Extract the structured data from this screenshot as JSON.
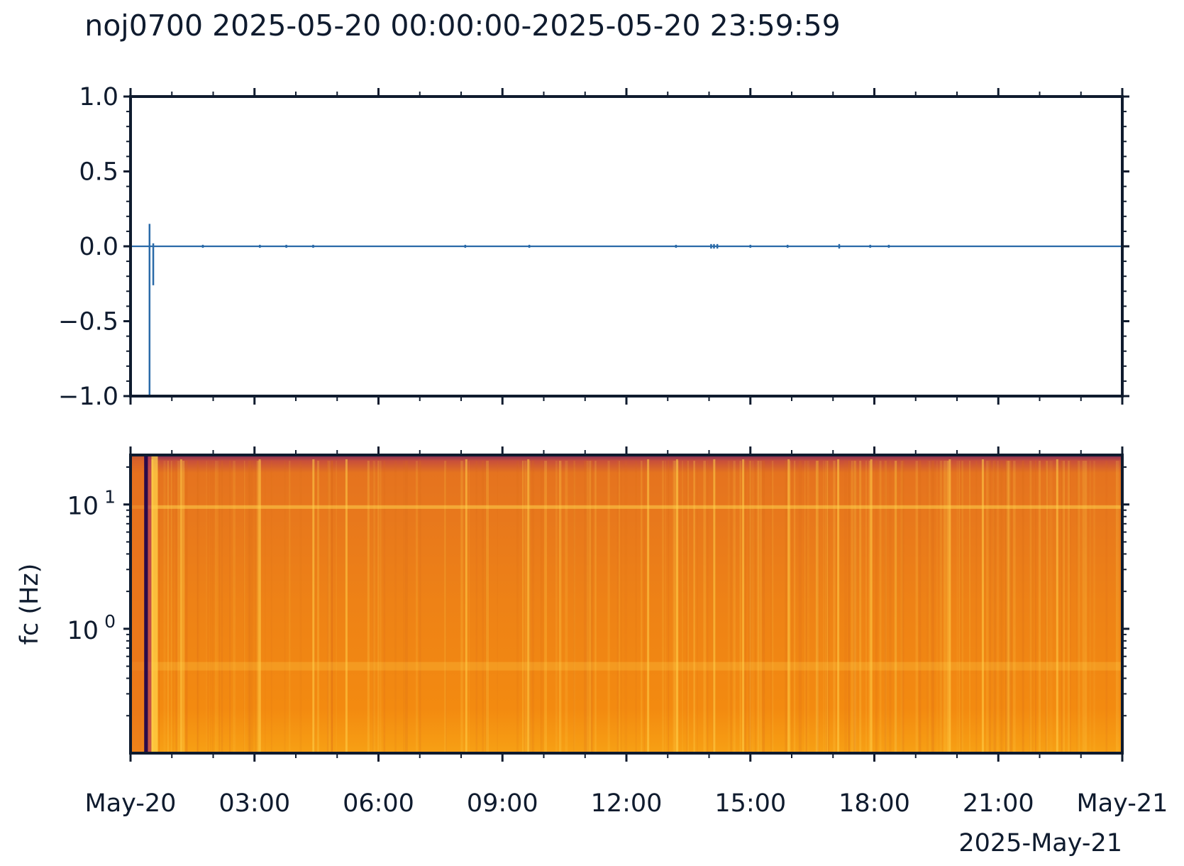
{
  "title": "noj0700 2025-05-20 00:00:00-2025-05-20 23:59:59",
  "colors": {
    "text": "#0f1b2e",
    "trace": "#2a6aa8",
    "spectrogram_base": "#f0860e",
    "spectrogram_dark": "#2a0a4a",
    "spectrogram_bright": "#ffd24a"
  },
  "chart_data": [
    {
      "type": "line",
      "name": "waveform",
      "ylim": [
        -1.0,
        1.0
      ],
      "yticks": [
        {
          "v": 1.0,
          "label": "1.0"
        },
        {
          "v": 0.5,
          "label": "0.5"
        },
        {
          "v": 0.0,
          "label": "0.0"
        },
        {
          "v": -0.5,
          "label": "−0.5"
        },
        {
          "v": -1.0,
          "label": "−1.0"
        }
      ],
      "xlim_hours": [
        0,
        24
      ],
      "baseline": 0.0,
      "spikes": [
        {
          "t": 0.46,
          "min": -1.0,
          "max": 0.15
        },
        {
          "t": 0.55,
          "min": -0.26,
          "max": 0.02
        },
        {
          "t": 1.75,
          "min": -0.01,
          "max": 0.01
        },
        {
          "t": 3.13,
          "min": -0.01,
          "max": 0.01
        },
        {
          "t": 3.77,
          "min": -0.01,
          "max": 0.01
        },
        {
          "t": 4.42,
          "min": -0.01,
          "max": 0.01
        },
        {
          "t": 8.1,
          "min": -0.01,
          "max": 0.01
        },
        {
          "t": 9.65,
          "min": -0.01,
          "max": 0.01
        },
        {
          "t": 13.2,
          "min": -0.01,
          "max": 0.01
        },
        {
          "t": 14.05,
          "min": -0.015,
          "max": 0.015
        },
        {
          "t": 14.12,
          "min": -0.015,
          "max": 0.015
        },
        {
          "t": 14.2,
          "min": -0.015,
          "max": 0.015
        },
        {
          "t": 15.0,
          "min": -0.01,
          "max": 0.01
        },
        {
          "t": 15.9,
          "min": -0.01,
          "max": 0.01
        },
        {
          "t": 17.15,
          "min": -0.015,
          "max": 0.015
        },
        {
          "t": 17.9,
          "min": -0.01,
          "max": 0.01
        },
        {
          "t": 18.35,
          "min": -0.01,
          "max": 0.01
        }
      ]
    },
    {
      "type": "heatmap",
      "name": "spectrogram",
      "ylabel": "fc (Hz)",
      "yscale": "log",
      "ylim": [
        0.1,
        25
      ],
      "yticks": [
        {
          "v": 10,
          "base": "10",
          "exp": "1"
        },
        {
          "v": 1,
          "base": "10",
          "exp": "0"
        }
      ],
      "xlim_hours": [
        0,
        24
      ],
      "dark_gap_hours": [
        0.33,
        0.42
      ],
      "bright_lines_hours": [
        0.5,
        1.2,
        3.1,
        4.4,
        5.2,
        8.1,
        9.6,
        12.5,
        13.2,
        14.1,
        14.8,
        15.9,
        17.1,
        17.9,
        19.8,
        20.6,
        22.4
      ],
      "bright_band_hz": 9.6,
      "lower_band_hz": 0.5
    }
  ],
  "xaxis": {
    "ticks": [
      {
        "h": 0,
        "label": "May-20"
      },
      {
        "h": 3,
        "label": "03:00"
      },
      {
        "h": 6,
        "label": "06:00"
      },
      {
        "h": 9,
        "label": "09:00"
      },
      {
        "h": 12,
        "label": "12:00"
      },
      {
        "h": 15,
        "label": "15:00"
      },
      {
        "h": 18,
        "label": "18:00"
      },
      {
        "h": 21,
        "label": "21:00"
      },
      {
        "h": 24,
        "label": "May-21"
      }
    ],
    "offset_label": "2025-May-21"
  }
}
